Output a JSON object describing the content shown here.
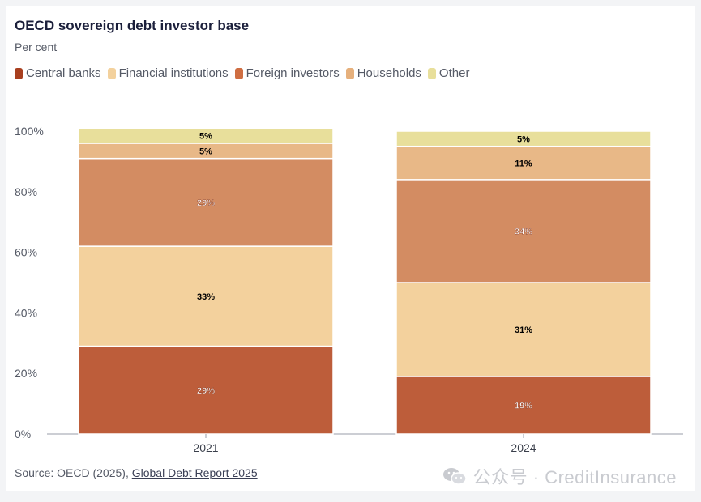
{
  "header": {
    "title": "OECD sovereign debt investor base",
    "subtitle": "Per cent"
  },
  "legend": [
    {
      "label": "Central banks",
      "color": "#a83f1f"
    },
    {
      "label": "Financial institutions",
      "color": "#f3d19d"
    },
    {
      "label": "Foreign investors",
      "color": "#cf6e42"
    },
    {
      "label": "Households",
      "color": "#e6b07c"
    },
    {
      "label": "Other",
      "color": "#e8df9b"
    }
  ],
  "footer": {
    "source_prefix": "Source: OECD (2025), ",
    "source_link": "Global Debt Report 2025"
  },
  "watermark": {
    "text": "公众号 · CreditInsurance"
  },
  "chart_data": {
    "type": "bar",
    "stacked": true,
    "categories": [
      "2021",
      "2024"
    ],
    "y_ticks": [
      "0%",
      "20%",
      "40%",
      "60%",
      "80%",
      "100%"
    ],
    "ylim": [
      0,
      100
    ],
    "series": [
      {
        "name": "Central banks",
        "color": "#bd5d3a",
        "values": [
          29,
          19
        ],
        "labels": [
          "29%",
          "19%"
        ],
        "label_color": "#ffffff"
      },
      {
        "name": "Financial institutions",
        "color": "#f3d19d",
        "values": [
          33,
          31
        ],
        "labels": [
          "33%",
          "31%"
        ],
        "label_color": "#000000"
      },
      {
        "name": "Foreign investors",
        "color": "#d38c62",
        "values": [
          29,
          34
        ],
        "labels": [
          "29%",
          "34%"
        ],
        "label_color": "#ffffff"
      },
      {
        "name": "Households",
        "color": "#e8b887",
        "values": [
          5,
          11
        ],
        "labels": [
          "5%",
          "11%"
        ],
        "label_color": "#000000"
      },
      {
        "name": "Other",
        "color": "#e8df9b",
        "values": [
          5,
          5
        ],
        "labels": [
          "5%",
          "5%"
        ],
        "label_color": "#000000"
      }
    ]
  }
}
